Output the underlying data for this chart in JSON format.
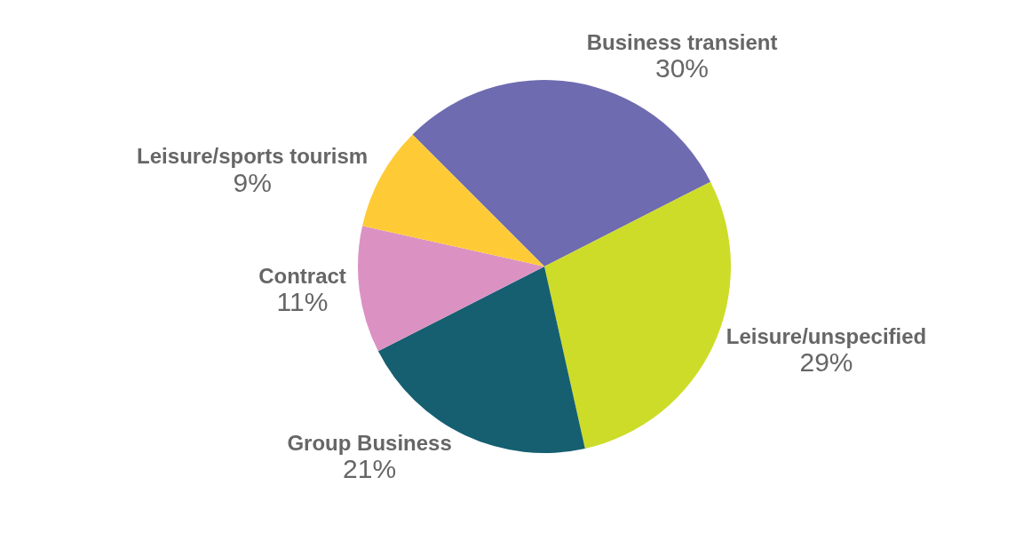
{
  "chart_data": {
    "type": "pie",
    "categories": [
      "Business transient",
      "Leisure/unspecified",
      "Group Business",
      "Contract",
      "Leisure/sports tourism"
    ],
    "values": [
      30,
      29,
      21,
      11,
      9
    ],
    "colors": [
      "#6e6bb0",
      "#cddc28",
      "#155f70",
      "#db92c3",
      "#fecb37"
    ],
    "value_labels": [
      "30%",
      "29%",
      "21%",
      "11%",
      "9%"
    ]
  }
}
